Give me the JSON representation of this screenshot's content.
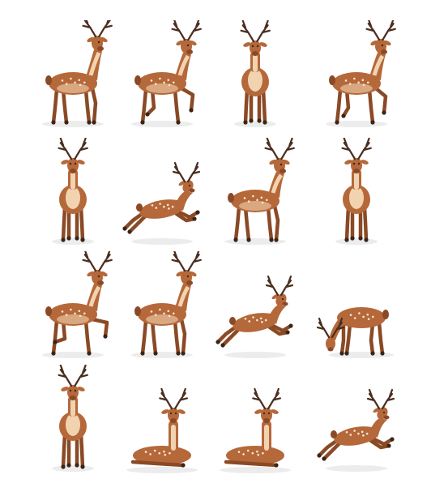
{
  "illustration": {
    "subject": "deer-pose-collection",
    "rows": 4,
    "columns": 4,
    "background_color": "#ffffff",
    "colors": {
      "body": "#b5683a",
      "body_dark": "#8a4a25",
      "belly": "#f2d3b0",
      "antler": "#4a2e1f",
      "spots": "#f7e7d2",
      "shadow": "#ececec",
      "hoof": "#3a2518"
    },
    "poses": [
      "standing-side-head-up",
      "walking-leg-raised",
      "standing-front",
      "walking-turn",
      "standing-front-alert",
      "leaping",
      "standing-side-looking-back",
      "standing-front-right",
      "standing-rearing",
      "standing-side",
      "leaping-stretched",
      "grazing",
      "standing-front-full",
      "lying-down",
      "lying-down-looking",
      "jumping"
    ]
  }
}
